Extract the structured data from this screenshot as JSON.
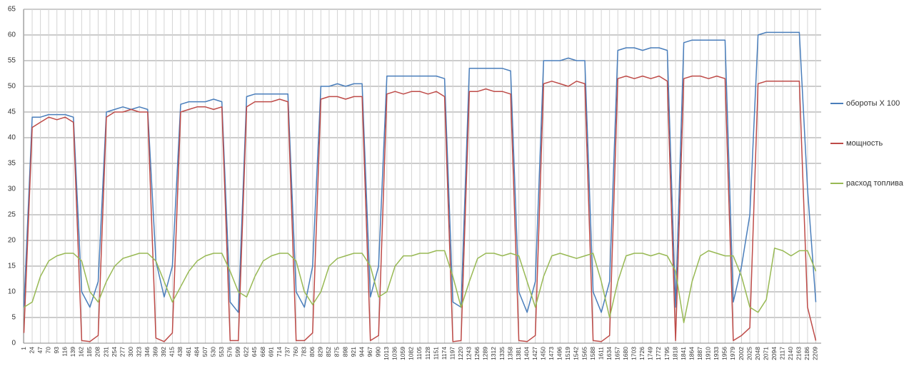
{
  "chart_data": {
    "type": "line",
    "x": [
      1,
      24,
      47,
      70,
      93,
      116,
      139,
      162,
      185,
      208,
      231,
      254,
      277,
      300,
      323,
      346,
      369,
      392,
      415,
      438,
      461,
      484,
      507,
      530,
      553,
      576,
      599,
      622,
      645,
      668,
      691,
      714,
      737,
      760,
      783,
      806,
      829,
      852,
      875,
      898,
      921,
      944,
      967,
      990,
      1013,
      1036,
      1059,
      1082,
      1105,
      1128,
      1151,
      1174,
      1197,
      1220,
      1243,
      1266,
      1289,
      1312,
      1335,
      1358,
      1381,
      1404,
      1427,
      1450,
      1473,
      1496,
      1519,
      1542,
      1565,
      1588,
      1611,
      1634,
      1657,
      1680,
      1703,
      1726,
      1749,
      1772,
      1795,
      1818,
      1841,
      1864,
      1887,
      1910,
      1933,
      1956,
      1979,
      2002,
      2025,
      2048,
      2071,
      2094,
      2117,
      2140,
      2163,
      2186,
      2209
    ],
    "series": [
      {
        "name": "обороты Х 100",
        "color": "#4a7ebb",
        "values": [
          7,
          44,
          44,
          44.5,
          44.5,
          44.5,
          44,
          10,
          7,
          12,
          45,
          45.5,
          46,
          45.5,
          46,
          45.5,
          16,
          9,
          15,
          46.5,
          47,
          47,
          47,
          47.5,
          47,
          8,
          6,
          48,
          48.5,
          48.5,
          48.5,
          48.5,
          48.5,
          10,
          7,
          15,
          50,
          50,
          50.5,
          50,
          50.5,
          50.5,
          9,
          15,
          52,
          52,
          52,
          52,
          52,
          52,
          52,
          51.5,
          8,
          7,
          53.5,
          53.5,
          53.5,
          53.5,
          53.5,
          53,
          10,
          6,
          12,
          55,
          55,
          55,
          55.5,
          55,
          55,
          10,
          6,
          12,
          57,
          57.5,
          57.5,
          57,
          57.5,
          57.5,
          57,
          7,
          58.5,
          59,
          59,
          59,
          59,
          59,
          8,
          15,
          25,
          60,
          60.5,
          60.5,
          60.5,
          60.5,
          60.5,
          30,
          8
        ]
      },
      {
        "name": "мощность",
        "color": "#be4b48",
        "values": [
          2,
          42,
          43,
          44,
          43.5,
          44,
          43,
          0.5,
          0.3,
          1.5,
          44,
          45,
          45,
          45.5,
          45,
          45,
          1,
          0.3,
          2,
          45,
          45.5,
          46,
          46,
          45.5,
          46,
          0.5,
          0.5,
          46,
          47,
          47,
          47,
          47.5,
          47,
          0.5,
          0.5,
          2,
          47.5,
          48,
          48,
          47.5,
          48,
          48,
          0.5,
          1.5,
          48.5,
          49,
          48.5,
          49,
          49,
          48.5,
          49,
          48,
          0.3,
          0.5,
          49,
          49,
          49.5,
          49,
          49,
          48.5,
          0.5,
          0.3,
          1.5,
          50.5,
          51,
          50.5,
          50,
          51,
          50.5,
          0.5,
          0.3,
          1.5,
          51.5,
          52,
          51.5,
          52,
          51.5,
          52,
          51,
          0.5,
          51.5,
          52,
          52,
          51.5,
          52,
          51.5,
          0.5,
          1.5,
          3,
          50.5,
          51,
          51,
          51,
          51,
          51,
          7,
          0.5
        ]
      },
      {
        "name": "расход топлива",
        "color": "#98b954",
        "values": [
          7,
          8,
          13,
          16,
          17,
          17.5,
          17.5,
          16,
          10,
          8,
          12,
          15,
          16.5,
          17,
          17.5,
          17.5,
          16,
          12,
          8,
          11,
          14,
          16,
          17,
          17.5,
          17.5,
          14,
          10,
          9,
          13,
          16,
          17,
          17.5,
          17.5,
          16,
          10,
          7.5,
          10,
          15,
          16.5,
          17,
          17.5,
          17.5,
          15,
          9,
          10,
          15,
          17,
          17,
          17.5,
          17.5,
          18,
          18,
          13,
          7,
          12,
          16.5,
          17.5,
          17.5,
          17,
          17.5,
          17,
          12,
          7,
          13,
          17,
          17.5,
          17,
          16.5,
          17,
          17.5,
          12,
          5,
          12,
          17,
          17.5,
          17.5,
          17,
          17.5,
          17,
          14,
          4,
          12,
          17,
          18,
          17.5,
          17,
          17,
          13,
          7,
          6,
          8.5,
          18.5,
          18,
          17,
          18,
          18,
          14
        ]
      }
    ],
    "xlim": [
      0,
      2224
    ],
    "xticks": [
      1,
      24,
      47,
      70,
      93,
      116,
      139,
      162,
      185,
      208,
      231,
      254,
      277,
      300,
      323,
      346,
      369,
      392,
      415,
      438,
      461,
      484,
      507,
      530,
      553,
      576,
      599,
      622,
      645,
      668,
      691,
      714,
      737,
      760,
      783,
      806,
      829,
      852,
      875,
      898,
      921,
      944,
      967,
      990,
      1013,
      1036,
      1059,
      1082,
      1105,
      1128,
      1151,
      1174,
      1197,
      1220,
      1243,
      1266,
      1289,
      1312,
      1335,
      1358,
      1381,
      1404,
      1427,
      1450,
      1473,
      1496,
      1519,
      1542,
      1565,
      1588,
      1611,
      1634,
      1657,
      1680,
      1703,
      1726,
      1749,
      1772,
      1795,
      1818,
      1841,
      1864,
      1887,
      1910,
      1933,
      1956,
      1979,
      2002,
      2025,
      2048,
      2071,
      2094,
      2117,
      2140,
      2163,
      2186,
      2209
    ],
    "ylim": [
      0,
      65
    ],
    "yticks": [
      0,
      5,
      10,
      15,
      20,
      25,
      30,
      35,
      40,
      45,
      50,
      55,
      60,
      65
    ],
    "grid": true,
    "legend": "right"
  }
}
